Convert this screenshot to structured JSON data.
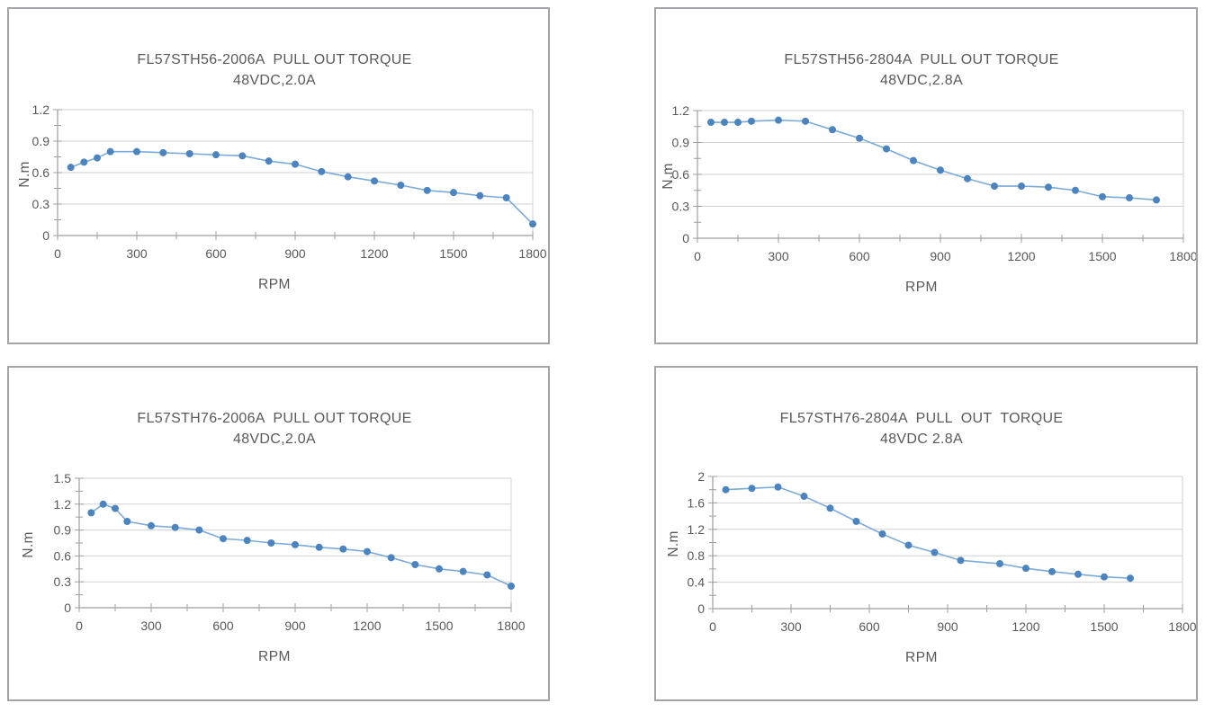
{
  "page": {
    "background": "#ffffff"
  },
  "style": {
    "panel_border": "#a3a3a8",
    "axis_color": "#9f9fa3",
    "grid_color": "#d2d2d2",
    "text_color": "#58595b",
    "line_color": "#7cabd9",
    "marker_color": "#4c84bf"
  },
  "chart_data": [
    {
      "type": "line",
      "model": "FL57STH56-2006A",
      "title": "FL57STH56-2006A  PULL OUT TORQUE",
      "subtitle": "48VDC,2.0A",
      "xlabel": "RPM",
      "ylabel": "N.m",
      "xlim": [
        0,
        1800
      ],
      "ylim": [
        0,
        1.2
      ],
      "x_major": 300,
      "x_minor": 150,
      "y_major": 0.3,
      "y_minor": 0.15,
      "grid": "horizontal",
      "legend": "none",
      "x": [
        50,
        100,
        150,
        200,
        300,
        400,
        500,
        600,
        700,
        800,
        900,
        1000,
        1100,
        1200,
        1300,
        1400,
        1500,
        1600,
        1700,
        1800
      ],
      "y": [
        0.65,
        0.7,
        0.74,
        0.8,
        0.8,
        0.79,
        0.78,
        0.77,
        0.76,
        0.71,
        0.68,
        0.61,
        0.56,
        0.52,
        0.48,
        0.43,
        0.41,
        0.38,
        0.36,
        0.11
      ]
    },
    {
      "type": "line",
      "model": "FL57STH56-2804A",
      "title": "FL57STH56-2804A  PULL OUT TORQUE",
      "subtitle": "48VDC,2.8A",
      "xlabel": "RPM",
      "ylabel": "N.m",
      "xlim": [
        0,
        1800
      ],
      "ylim": [
        0,
        1.2
      ],
      "x_major": 300,
      "x_minor": 150,
      "y_major": 0.3,
      "y_minor": 0.15,
      "grid": "horizontal",
      "legend": "none",
      "x": [
        50,
        100,
        150,
        200,
        300,
        400,
        500,
        600,
        700,
        800,
        900,
        1000,
        1100,
        1200,
        1300,
        1400,
        1500,
        1600,
        1700
      ],
      "y": [
        1.09,
        1.09,
        1.09,
        1.1,
        1.11,
        1.1,
        1.02,
        0.94,
        0.84,
        0.73,
        0.64,
        0.56,
        0.49,
        0.49,
        0.48,
        0.45,
        0.39,
        0.38,
        0.36
      ]
    },
    {
      "type": "line",
      "model": "FL57STH76-2006A",
      "title": "FL57STH76-2006A  PULL OUT TORQUE",
      "subtitle": "48VDC,2.0A",
      "xlabel": "RPM",
      "ylabel": "N.m",
      "xlim": [
        0,
        1800
      ],
      "ylim": [
        0,
        1.5
      ],
      "x_major": 300,
      "x_minor": 150,
      "y_major": 0.3,
      "y_minor": 0.15,
      "grid": "horizontal",
      "legend": "none",
      "x": [
        50,
        100,
        150,
        200,
        300,
        400,
        500,
        600,
        700,
        800,
        900,
        1000,
        1100,
        1200,
        1300,
        1400,
        1500,
        1600,
        1700,
        1800
      ],
      "y": [
        1.1,
        1.2,
        1.15,
        1.0,
        0.95,
        0.93,
        0.9,
        0.8,
        0.78,
        0.75,
        0.73,
        0.7,
        0.68,
        0.65,
        0.58,
        0.5,
        0.45,
        0.42,
        0.38,
        0.25
      ]
    },
    {
      "type": "line",
      "model": "FL57STH76-2804A",
      "title": "FL57STH76-2804A  PULL  OUT  TORQUE",
      "subtitle": "48VDC 2.8A",
      "xlabel": "RPM",
      "ylabel": "N.m",
      "xlim": [
        0,
        1800
      ],
      "ylim": [
        0,
        2
      ],
      "x_major": 300,
      "x_minor": 150,
      "y_major": 0.4,
      "y_minor": 0.2,
      "grid": "horizontal",
      "legend": "none",
      "x": [
        50,
        150,
        250,
        350,
        450,
        550,
        650,
        750,
        850,
        950,
        1100,
        1200,
        1300,
        1400,
        1500,
        1600
      ],
      "y": [
        1.8,
        1.82,
        1.84,
        1.7,
        1.52,
        1.32,
        1.13,
        0.96,
        0.85,
        0.73,
        0.68,
        0.61,
        0.56,
        0.52,
        0.48,
        0.46
      ]
    }
  ]
}
